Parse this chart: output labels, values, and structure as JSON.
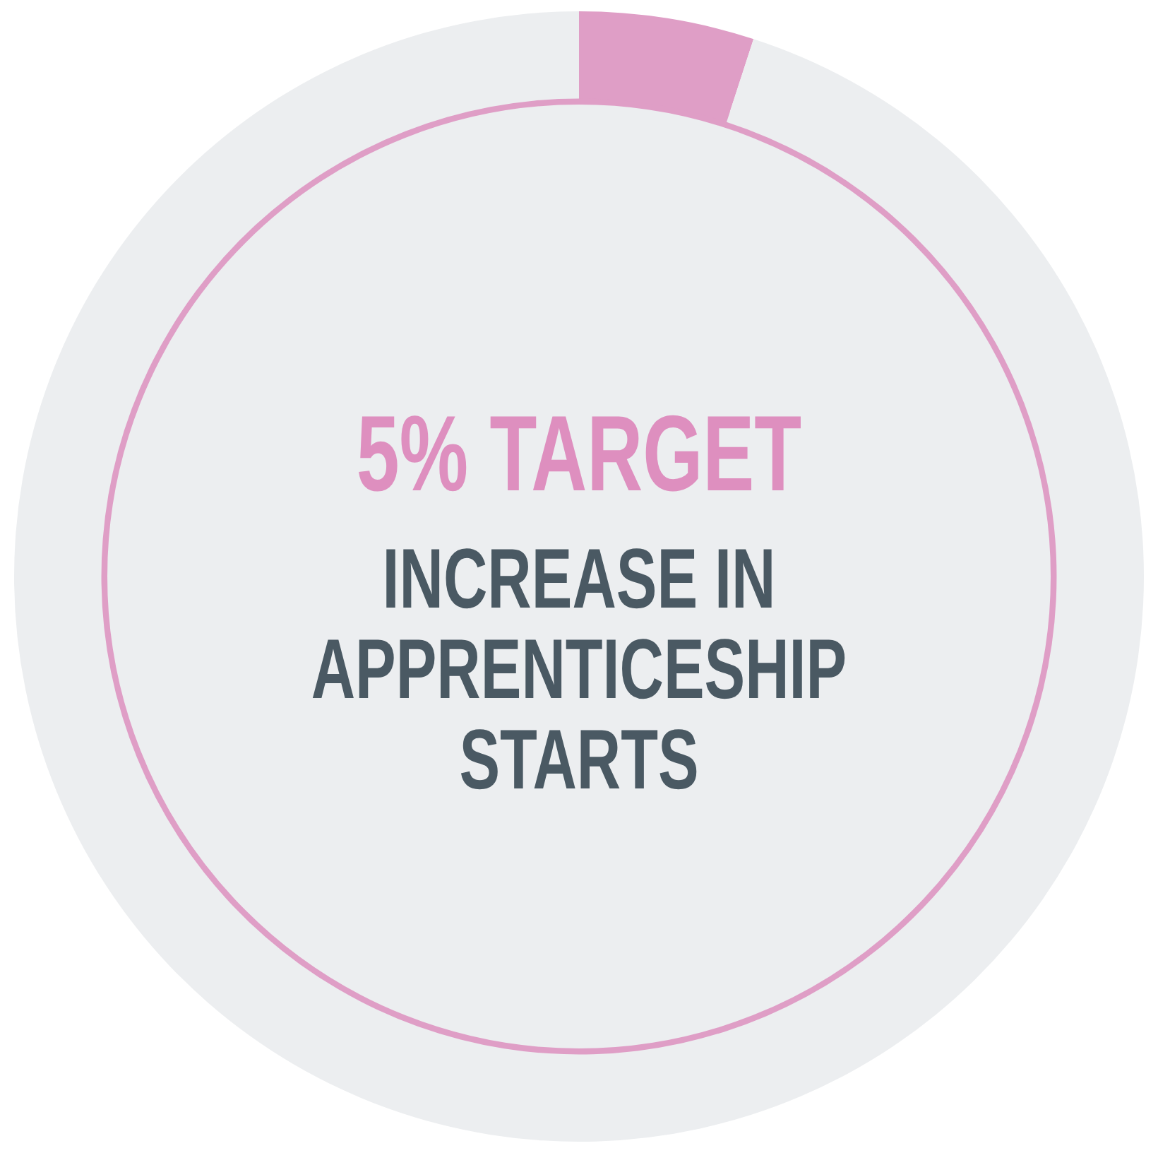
{
  "chart_data": {
    "type": "donut",
    "title": "5% TARGET",
    "subtitle": "INCREASE IN APPRENTICESHIP STARTS",
    "categories": [
      null,
      null
    ],
    "values": [
      5,
      95
    ],
    "colors": [
      "#df9ec6",
      "#eceef0"
    ],
    "legend": false
  }
}
